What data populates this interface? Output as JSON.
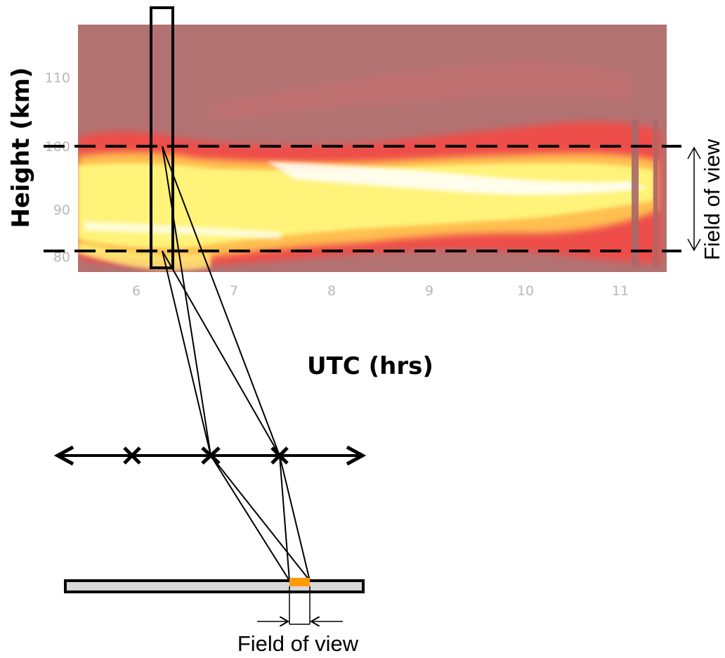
{
  "plot": {
    "y_axis_label": "Height (km)",
    "x_axis_label": "UTC (hrs)",
    "y_ticks": [
      "110",
      "100",
      "90",
      "80"
    ],
    "x_ticks": [
      "6",
      "7",
      "8",
      "9",
      "10",
      "11"
    ]
  },
  "annotations": {
    "field_of_view_vertical": "Field of view",
    "field_of_view_bottom": "Field of view"
  },
  "colors": {
    "background_plot": "#b07070",
    "band_red": "#f0504a",
    "band_yellow": "#fffc80",
    "band_white": "#ffffff",
    "detector_bar": "#d8d8d8",
    "detector_pixel": "#ff9a00"
  }
}
